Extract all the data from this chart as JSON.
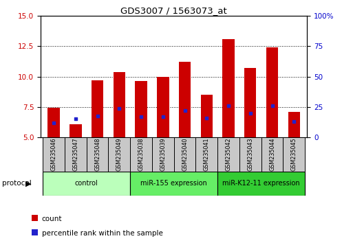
{
  "title": "GDS3007 / 1563073_at",
  "samples": [
    "GSM235046",
    "GSM235047",
    "GSM235048",
    "GSM235049",
    "GSM235038",
    "GSM235039",
    "GSM235040",
    "GSM235041",
    "GSM235042",
    "GSM235043",
    "GSM235044",
    "GSM235045"
  ],
  "count_values": [
    7.45,
    6.05,
    9.7,
    10.35,
    9.65,
    10.0,
    11.2,
    8.5,
    13.1,
    10.7,
    12.4,
    7.1
  ],
  "percentile_values": [
    6.2,
    6.5,
    6.75,
    7.4,
    6.7,
    6.7,
    7.2,
    6.6,
    7.6,
    7.0,
    7.6,
    6.3
  ],
  "ylim_left": [
    5,
    15
  ],
  "ylim_right": [
    0,
    100
  ],
  "yticks_left": [
    5,
    7.5,
    10,
    12.5,
    15
  ],
  "yticks_right": [
    0,
    25,
    50,
    75,
    100
  ],
  "bar_color": "#cc0000",
  "dot_color": "#2222cc",
  "bar_width": 0.55,
  "groups": [
    {
      "label": "control",
      "start": 0,
      "end": 3
    },
    {
      "label": "miR-155 expression",
      "start": 4,
      "end": 7
    },
    {
      "label": "miR-K12-11 expression",
      "start": 8,
      "end": 11
    }
  ],
  "group_colors": [
    "#bbffbb",
    "#66ee66",
    "#33cc33"
  ],
  "protocol_label": "protocol",
  "legend_count_label": "count",
  "legend_percentile_label": "percentile rank within the sample",
  "bg_color": "#ffffff",
  "tick_label_color_left": "#cc0000",
  "tick_label_color_right": "#0000cc",
  "base_value": 5
}
